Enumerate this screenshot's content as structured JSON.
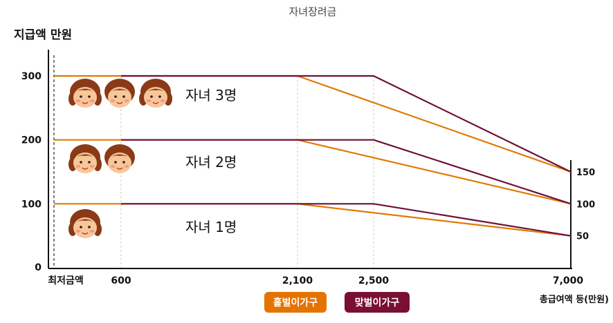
{
  "chart_data": {
    "type": "line",
    "title": "자녀장려금",
    "ylabel": "지급액 만원",
    "xlabel": "총급여액 등(만원)",
    "x_start_label": "최저금액",
    "x_ticks": [
      "600",
      "2,100",
      "2,500",
      "7,000"
    ],
    "y_ticks": [
      "0",
      "100",
      "200",
      "300"
    ],
    "right_ticks": [
      "150",
      "100",
      "50"
    ],
    "ylim": [
      0,
      360
    ],
    "grid": "vertical dashed at 600, 2,100, 2,500",
    "legend_position": "bottom-center",
    "series": [
      {
        "name": "홑벌이가구",
        "color": "#e07a00",
        "groups": [
          {
            "label": "자녀 1명",
            "points": [
              [
                "최저금액",
                100
              ],
              [
                "2,100",
                100
              ],
              [
                "7,000",
                50
              ]
            ]
          },
          {
            "label": "자녀 2명",
            "points": [
              [
                "최저금액",
                200
              ],
              [
                "2,100",
                200
              ],
              [
                "7,000",
                100
              ]
            ]
          },
          {
            "label": "자녀 3명",
            "points": [
              [
                "최저금액",
                300
              ],
              [
                "2,100",
                300
              ],
              [
                "7,000",
                150
              ]
            ]
          }
        ]
      },
      {
        "name": "맞벌이가구",
        "color": "#6e0f3a",
        "groups": [
          {
            "label": "자녀 1명",
            "points": [
              [
                "600",
                100
              ],
              [
                "2,500",
                100
              ],
              [
                "7,000",
                50
              ]
            ]
          },
          {
            "label": "자녀 2명",
            "points": [
              [
                "600",
                200
              ],
              [
                "2,500",
                200
              ],
              [
                "7,000",
                100
              ]
            ]
          },
          {
            "label": "자녀 3명",
            "points": [
              [
                "600",
                300
              ],
              [
                "2,500",
                300
              ],
              [
                "7,000",
                150
              ]
            ]
          }
        ]
      }
    ],
    "group_labels": [
      "자녀 3명",
      "자녀 2명",
      "자녀 1명"
    ],
    "children_icons": [
      3,
      2,
      1
    ]
  },
  "colors": {
    "single": "#e07a00",
    "dual": "#6e0f3a",
    "legend_single_bg": "#e57300",
    "legend_dual_bg": "#7a0f35"
  }
}
